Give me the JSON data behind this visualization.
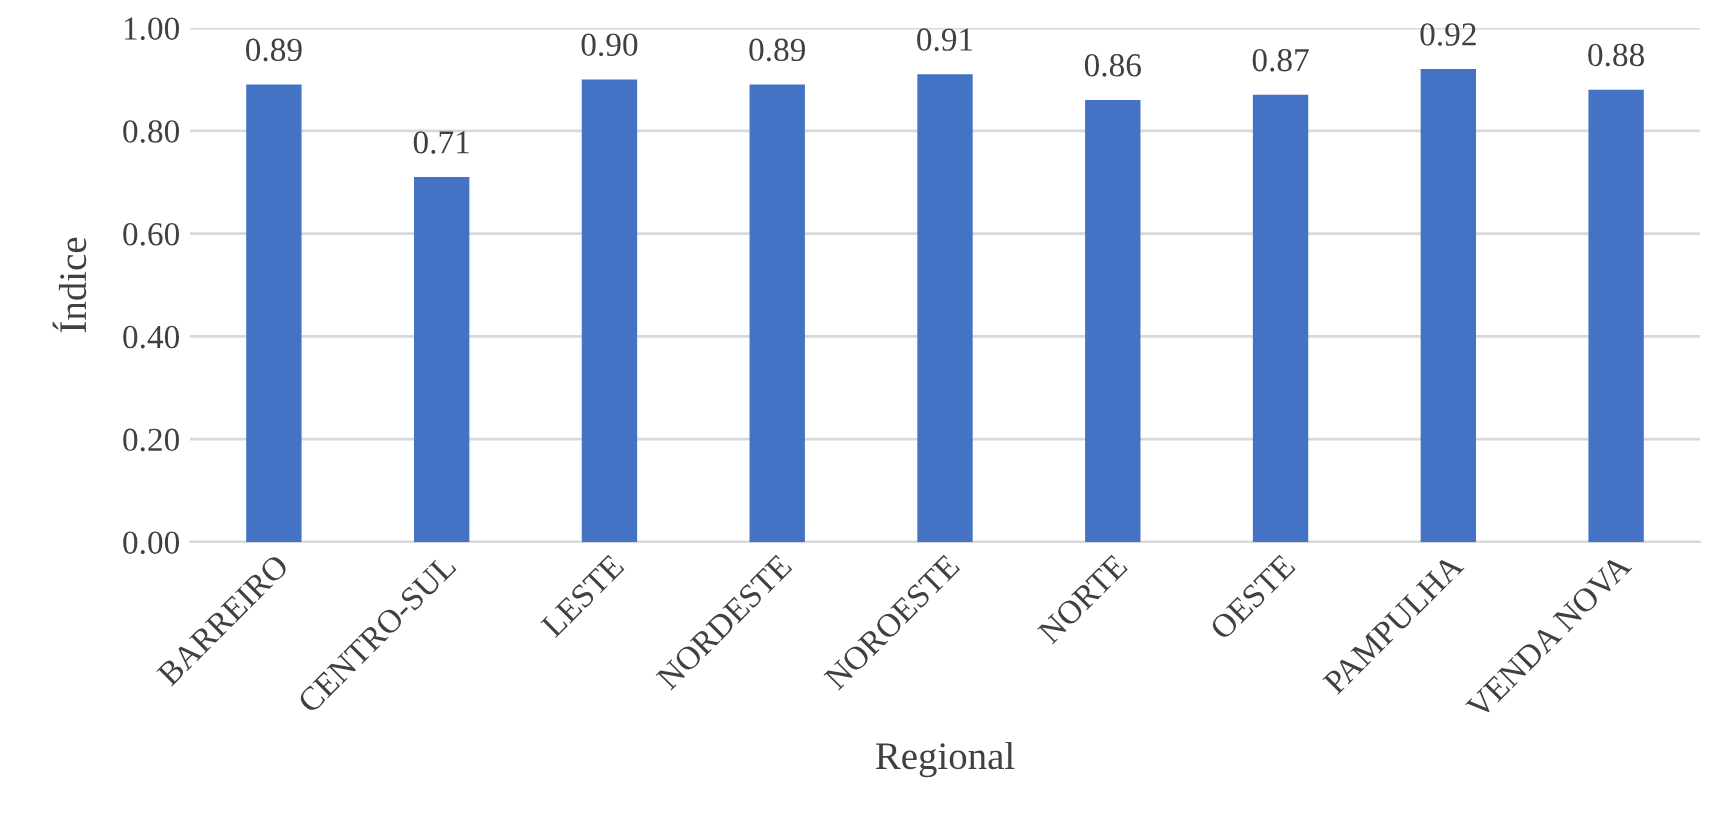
{
  "chart_data": {
    "type": "bar",
    "xlabel": "Regional",
    "ylabel": "Índice",
    "categories": [
      "BARREIRO",
      "CENTRO-SUL",
      "LESTE",
      "NORDESTE",
      "NOROESTE",
      "NORTE",
      "OESTE",
      "PAMPULHA",
      "VENDA NOVA"
    ],
    "values": [
      0.89,
      0.71,
      0.9,
      0.89,
      0.91,
      0.86,
      0.87,
      0.92,
      0.88
    ],
    "value_labels": [
      "0.89",
      "0.71",
      "0.90",
      "0.89",
      "0.91",
      "0.86",
      "0.87",
      "0.92",
      "0.88"
    ],
    "color": "#4472c4",
    "ylim": [
      0,
      1
    ],
    "yticks": [
      {
        "value": 0,
        "label": "0.00"
      },
      {
        "value": 0.2,
        "label": "0.20"
      },
      {
        "value": 0.4,
        "label": "0.40"
      },
      {
        "value": 0.6,
        "label": "0.60"
      },
      {
        "value": 0.8,
        "label": "0.80"
      },
      {
        "value": 1,
        "label": "1.00"
      }
    ],
    "grid": "y",
    "legend": false
  }
}
